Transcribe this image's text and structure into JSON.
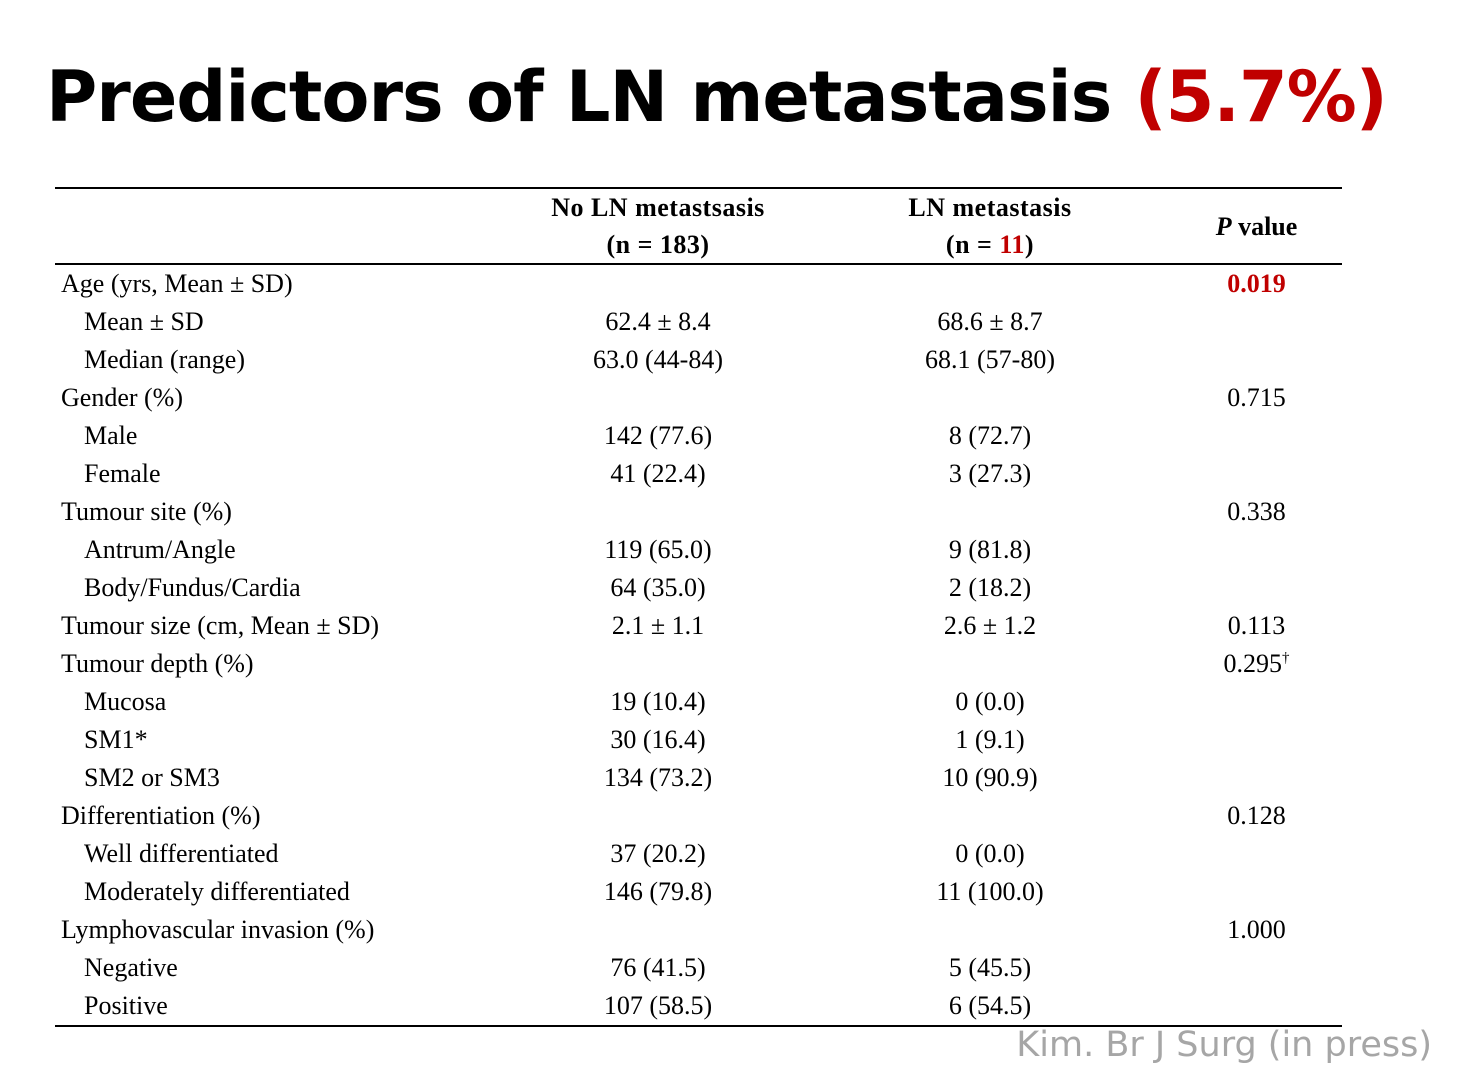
{
  "title": {
    "main": "Predictors of LN metastasis ",
    "accent": "(5.7%)"
  },
  "table": {
    "headers": {
      "col1_line1": "No LN metastsasis",
      "col1_line2": "(n = 183)",
      "col2_line1": "LN metastasis",
      "col2_n_prefix": "(n = ",
      "col2_n_value": "11",
      "col2_n_suffix": ")",
      "pvalue_italic": "P",
      "pvalue_rest": " value"
    },
    "rows": [
      {
        "label": "Age (yrs, Mean ± SD)",
        "no_ln": "",
        "ln": "",
        "p": "0.019"
      },
      {
        "label": "Mean ± SD",
        "no_ln": "62.4 ± 8.4",
        "ln": "68.6 ± 8.7",
        "p": ""
      },
      {
        "label": "Median (range)",
        "no_ln": "63.0 (44-84)",
        "ln": "68.1 (57-80)",
        "p": ""
      },
      {
        "label": "Gender (%)",
        "no_ln": "",
        "ln": "",
        "p": "0.715"
      },
      {
        "label": "Male",
        "no_ln": "142 (77.6)",
        "ln": "8 (72.7)",
        "p": ""
      },
      {
        "label": "Female",
        "no_ln": "41 (22.4)",
        "ln": "3 (27.3)",
        "p": ""
      },
      {
        "label": "Tumour site (%)",
        "no_ln": "",
        "ln": "",
        "p": "0.338"
      },
      {
        "label": "Antrum/Angle",
        "no_ln": "119 (65.0)",
        "ln": "9 (81.8)",
        "p": ""
      },
      {
        "label": "Body/Fundus/Cardia",
        "no_ln": "64 (35.0)",
        "ln": "2 (18.2)",
        "p": ""
      },
      {
        "label": "Tumour size (cm, Mean ± SD)",
        "no_ln": "2.1 ± 1.1",
        "ln": "2.6 ± 1.2",
        "p": "0.113"
      },
      {
        "label": "Tumour depth (%)",
        "no_ln": "",
        "ln": "",
        "p": "0.295",
        "p_mark": "†"
      },
      {
        "label": "Mucosa",
        "no_ln": "19 (10.4)",
        "ln": "0 (0.0)",
        "p": ""
      },
      {
        "label": "SM1*",
        "no_ln": "30 (16.4)",
        "ln": "1 (9.1)",
        "p": ""
      },
      {
        "label": "SM2 or SM3",
        "no_ln": "134 (73.2)",
        "ln": "10 (90.9)",
        "p": ""
      },
      {
        "label": "Differentiation (%)",
        "no_ln": "",
        "ln": "",
        "p": "0.128"
      },
      {
        "label": "Well differentiated",
        "no_ln": "37 (20.2)",
        "ln": "0 (0.0)",
        "p": ""
      },
      {
        "label": "Moderately differentiated",
        "no_ln": "146 (79.8)",
        "ln": "11 (100.0)",
        "p": ""
      },
      {
        "label": "Lymphovascular invasion (%)",
        "no_ln": "",
        "ln": "",
        "p": "1.000"
      },
      {
        "label": "Negative",
        "no_ln": "76 (41.5)",
        "ln": "5 (45.5)",
        "p": ""
      },
      {
        "label": "Positive",
        "no_ln": "107 (58.5)",
        "ln": "6 (54.5)",
        "p": ""
      }
    ]
  },
  "citation": "Kim. Br J Surg (in press)",
  "colors": {
    "accent": "#c00000",
    "citation": "#a6a6a6"
  }
}
